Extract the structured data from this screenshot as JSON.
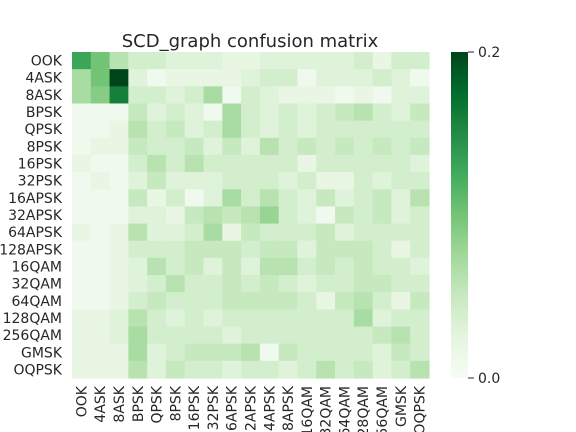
{
  "chart_data": {
    "type": "heatmap",
    "title": "SCD_graph confusion matrix",
    "xlabel": "",
    "ylabel": "",
    "classes": [
      "OOK",
      "4ASK",
      "8ASK",
      "BPSK",
      "QPSK",
      "8PSK",
      "16PSK",
      "32PSK",
      "16APSK",
      "32APSK",
      "64APSK",
      "128APSK",
      "16QAM",
      "32QAM",
      "64QAM",
      "128QAM",
      "256QAM",
      "GMSK",
      "OQPSK"
    ],
    "x_tick_labels": [
      "OOK",
      "4ASK",
      "8ASK",
      "BPSK",
      "QPSK",
      "8PSK",
      "16PSK",
      "32PSK",
      "16APSK",
      "32APSK",
      "64APSK",
      "128APSK",
      "16QAM",
      "32QAM",
      "64QAM",
      "128QAM",
      "256QAM",
      "GMSK",
      "OQPSK"
    ],
    "y_tick_labels": [
      "OOK",
      "4ASK",
      "8ASK",
      "BPSK",
      "QPSK",
      "8PSK",
      "16PSK",
      "32PSK",
      "16APSK",
      "32APSK",
      "64APSK",
      "128APSK",
      "16QAM",
      "32QAM",
      "64QAM",
      "128QAM",
      "256QAM",
      "GMSK",
      "OQPSK"
    ],
    "colorbar": {
      "min": 0.0,
      "max": 0.2,
      "ticks": [
        "0.0",
        "0.2"
      ],
      "colormap": "Greens"
    },
    "grid": false,
    "values": [
      [
        0.13,
        0.1,
        0.06,
        0.04,
        0.04,
        0.03,
        0.03,
        0.03,
        0.02,
        0.02,
        0.03,
        0.03,
        0.03,
        0.03,
        0.03,
        0.04,
        0.02,
        0.04,
        0.04
      ],
      [
        0.07,
        0.1,
        0.2,
        0.03,
        0.01,
        0.02,
        0.02,
        0.02,
        0.02,
        0.03,
        0.04,
        0.04,
        0.01,
        0.03,
        0.03,
        0.03,
        0.04,
        0.03,
        0.01
      ],
      [
        0.07,
        0.09,
        0.16,
        0.04,
        0.04,
        0.03,
        0.04,
        0.07,
        0.01,
        0.04,
        0.03,
        0.02,
        0.02,
        0.02,
        0.01,
        0.02,
        0.01,
        0.03,
        0.03
      ],
      [
        0.01,
        0.01,
        0.01,
        0.05,
        0.03,
        0.04,
        0.03,
        0.01,
        0.07,
        0.04,
        0.03,
        0.04,
        0.03,
        0.04,
        0.05,
        0.06,
        0.04,
        0.03,
        0.05
      ],
      [
        0.01,
        0.01,
        0.02,
        0.06,
        0.04,
        0.05,
        0.03,
        0.04,
        0.07,
        0.04,
        0.03,
        0.04,
        0.03,
        0.04,
        0.04,
        0.04,
        0.04,
        0.04,
        0.04
      ],
      [
        0.01,
        0.02,
        0.02,
        0.05,
        0.04,
        0.04,
        0.05,
        0.03,
        0.05,
        0.03,
        0.06,
        0.04,
        0.05,
        0.04,
        0.05,
        0.04,
        0.05,
        0.04,
        0.05
      ],
      [
        0.02,
        0.01,
        0.01,
        0.04,
        0.06,
        0.04,
        0.06,
        0.04,
        0.04,
        0.04,
        0.04,
        0.04,
        0.02,
        0.04,
        0.04,
        0.04,
        0.04,
        0.04,
        0.03
      ],
      [
        0.01,
        0.02,
        0.01,
        0.03,
        0.05,
        0.03,
        0.03,
        0.03,
        0.04,
        0.04,
        0.04,
        0.03,
        0.04,
        0.02,
        0.02,
        0.04,
        0.03,
        0.04,
        0.04
      ],
      [
        0.01,
        0.01,
        0.01,
        0.05,
        0.02,
        0.04,
        0.01,
        0.03,
        0.07,
        0.04,
        0.06,
        0.04,
        0.03,
        0.05,
        0.03,
        0.04,
        0.05,
        0.03,
        0.06
      ],
      [
        0.01,
        0.01,
        0.01,
        0.03,
        0.03,
        0.02,
        0.05,
        0.06,
        0.05,
        0.06,
        0.08,
        0.04,
        0.03,
        0.01,
        0.05,
        0.04,
        0.05,
        0.03,
        0.04
      ],
      [
        0.02,
        0.01,
        0.02,
        0.06,
        0.03,
        0.03,
        0.04,
        0.07,
        0.02,
        0.05,
        0.04,
        0.04,
        0.04,
        0.05,
        0.03,
        0.04,
        0.04,
        0.04,
        0.04
      ],
      [
        0.01,
        0.01,
        0.02,
        0.04,
        0.04,
        0.04,
        0.05,
        0.05,
        0.05,
        0.04,
        0.05,
        0.05,
        0.03,
        0.05,
        0.05,
        0.05,
        0.04,
        0.02,
        0.04
      ],
      [
        0.01,
        0.01,
        0.02,
        0.03,
        0.06,
        0.04,
        0.05,
        0.03,
        0.05,
        0.03,
        0.06,
        0.06,
        0.04,
        0.05,
        0.04,
        0.05,
        0.04,
        0.04,
        0.03
      ],
      [
        0.01,
        0.01,
        0.02,
        0.03,
        0.04,
        0.06,
        0.04,
        0.04,
        0.05,
        0.04,
        0.05,
        0.04,
        0.03,
        0.04,
        0.04,
        0.05,
        0.05,
        0.04,
        0.04
      ],
      [
        0.01,
        0.01,
        0.02,
        0.04,
        0.05,
        0.04,
        0.04,
        0.04,
        0.05,
        0.05,
        0.05,
        0.05,
        0.04,
        0.02,
        0.05,
        0.06,
        0.04,
        0.02,
        0.05
      ],
      [
        0.02,
        0.02,
        0.03,
        0.06,
        0.04,
        0.03,
        0.04,
        0.03,
        0.04,
        0.04,
        0.04,
        0.04,
        0.04,
        0.04,
        0.04,
        0.07,
        0.03,
        0.04,
        0.04
      ],
      [
        0.02,
        0.02,
        0.03,
        0.07,
        0.04,
        0.04,
        0.04,
        0.04,
        0.03,
        0.04,
        0.04,
        0.04,
        0.04,
        0.04,
        0.04,
        0.04,
        0.05,
        0.06,
        0.04
      ],
      [
        0.02,
        0.02,
        0.02,
        0.07,
        0.03,
        0.04,
        0.05,
        0.05,
        0.05,
        0.06,
        0.01,
        0.05,
        0.04,
        0.04,
        0.04,
        0.04,
        0.03,
        0.05,
        0.04
      ],
      [
        0.02,
        0.02,
        0.02,
        0.06,
        0.03,
        0.05,
        0.04,
        0.04,
        0.03,
        0.04,
        0.04,
        0.03,
        0.04,
        0.06,
        0.04,
        0.05,
        0.03,
        0.04,
        0.06
      ]
    ]
  }
}
